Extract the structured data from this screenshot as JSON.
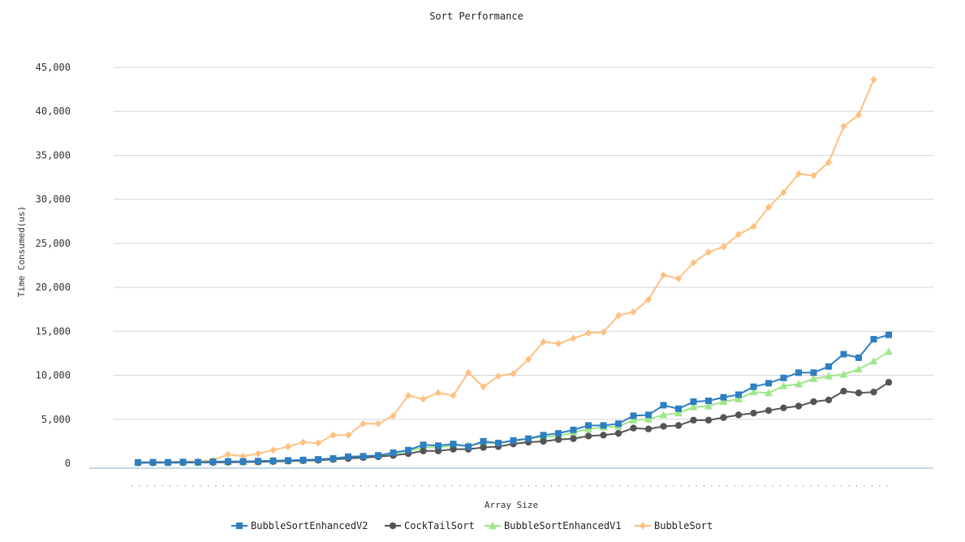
{
  "chart_data": {
    "type": "line",
    "title": "Sort Performance",
    "xlabel": "Array Size",
    "ylabel": "Time Consumed(us)",
    "ylim": [
      0,
      45000
    ],
    "ytick_labels": [
      "0",
      "5,000",
      "10,000",
      "15,000",
      "20,000",
      "25,000",
      "30,000",
      "35,000",
      "40,000",
      "45,000"
    ],
    "yticks": [
      0,
      5000,
      10000,
      15000,
      20000,
      25000,
      30000,
      35000,
      40000,
      45000
    ],
    "grid": true,
    "legend_position": "bottom",
    "series": [
      {
        "name": "BubbleSortEnhancedV2",
        "color": "#2e7fc2",
        "marker": "square",
        "values": [
          100,
          120,
          110,
          150,
          130,
          180,
          220,
          210,
          250,
          300,
          330,
          380,
          450,
          550,
          750,
          800,
          900,
          1200,
          1500,
          2100,
          2000,
          2200,
          1900,
          2500,
          2300,
          2600,
          2800,
          3200,
          3400,
          3800,
          4300,
          4300,
          4500,
          5400,
          5500,
          6600,
          6200,
          7000,
          7100,
          7500,
          7800,
          8700,
          9100,
          9700,
          10300,
          10300,
          11000,
          12400,
          12000,
          14100,
          14600
        ]
      },
      {
        "name": "CockTailSort",
        "color": "#555555",
        "marker": "circle",
        "values": [
          50,
          60,
          70,
          80,
          90,
          100,
          120,
          140,
          160,
          200,
          250,
          300,
          350,
          450,
          550,
          650,
          750,
          900,
          1100,
          1400,
          1400,
          1600,
          1600,
          1800,
          1900,
          2200,
          2400,
          2500,
          2700,
          2800,
          3100,
          3200,
          3400,
          4000,
          3900,
          4200,
          4300,
          4900,
          4900,
          5200,
          5500,
          5700,
          6000,
          6300,
          6500,
          7000,
          7200,
          8200,
          8000,
          8100,
          9200
        ]
      },
      {
        "name": "BubbleSortEnhancedV1",
        "color": "#9ee68a",
        "marker": "triangle",
        "values": [
          80,
          100,
          90,
          120,
          110,
          150,
          180,
          170,
          200,
          250,
          280,
          330,
          400,
          500,
          700,
          750,
          850,
          1100,
          1400,
          1800,
          1800,
          2000,
          2000,
          2300,
          2300,
          2500,
          2800,
          3000,
          3100,
          3500,
          3900,
          4100,
          4200,
          4900,
          5000,
          5500,
          5700,
          6400,
          6500,
          7000,
          7300,
          8100,
          8000,
          8800,
          9000,
          9600,
          9900,
          10100,
          10700,
          11600,
          12700
        ]
      },
      {
        "name": "BubbleSort",
        "color": "#ffc080",
        "marker": "diamond",
        "values": [
          100,
          150,
          160,
          200,
          250,
          350,
          1000,
          800,
          1100,
          1500,
          1900,
          2400,
          2300,
          3200,
          3200,
          4500,
          4500,
          5400,
          7700,
          7300,
          8000,
          7700,
          10300,
          8700,
          9900,
          10200,
          11800,
          13800,
          13600,
          14200,
          14800,
          14900,
          16800,
          17200,
          18600,
          21400,
          21000,
          22800,
          24000,
          24600,
          26000,
          26900,
          29100,
          30800,
          32900,
          32700,
          34200,
          38300,
          39600,
          43600
        ]
      }
    ]
  }
}
